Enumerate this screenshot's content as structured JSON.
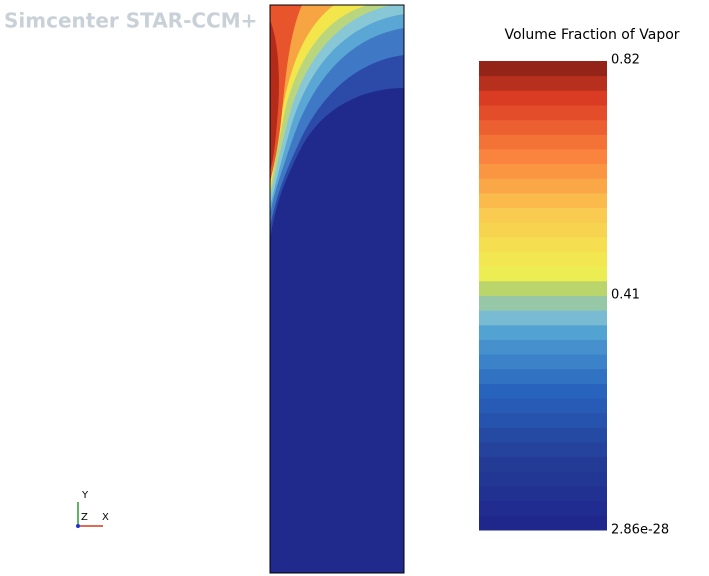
{
  "app_title": "Simcenter STAR-CCM+",
  "legend": {
    "title": "Volume Fraction of Vapor",
    "labels": [
      "0.82",
      "0.41",
      "2.86e-28"
    ]
  },
  "triad": {
    "y": "Y",
    "z": "Z",
    "x": "X"
  }
}
